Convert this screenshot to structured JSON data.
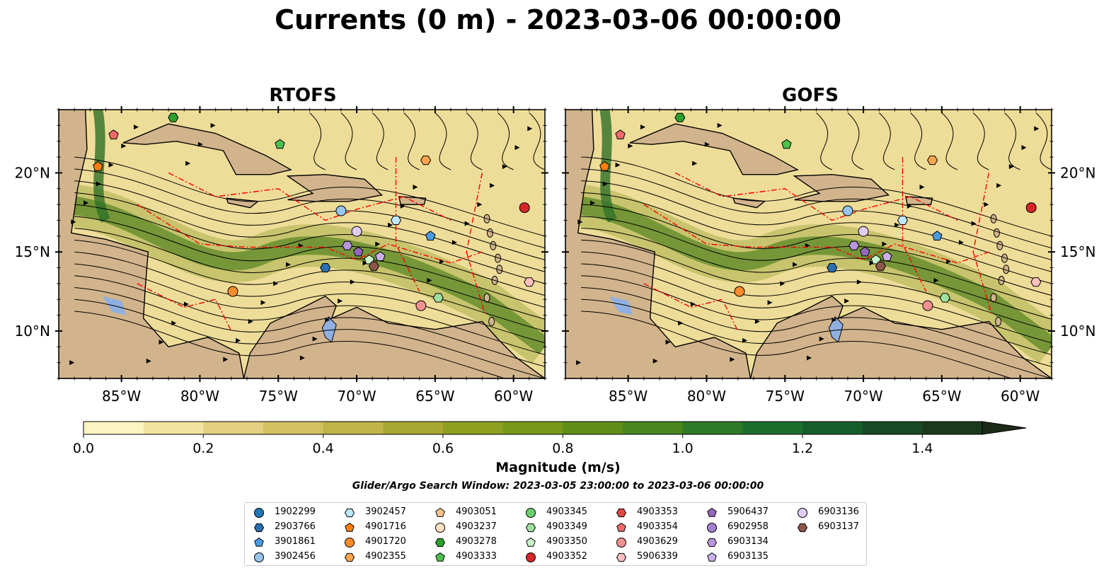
{
  "title": "Currents (0 m) - 2023-03-06 00:00:00",
  "panels": [
    {
      "title": "RTOFS"
    },
    {
      "title": "GOFS"
    }
  ],
  "map": {
    "lon_range": [
      -89,
      -58
    ],
    "lat_range": [
      7,
      24
    ],
    "x_ticks": [
      "85°W",
      "80°W",
      "75°W",
      "70°W",
      "65°W",
      "60°W"
    ],
    "y_ticks": [
      "20°N",
      "15°N",
      "10°N"
    ],
    "colors": {
      "land": "#d2b48c",
      "ocean_low": "#fdf5c1",
      "streamline": "#000000",
      "eez": "#ff0000",
      "lake": "#8fb0e0"
    }
  },
  "colorbar": {
    "label": "Magnitude (m/s)",
    "ticks": [
      "0.0",
      "0.2",
      "0.4",
      "0.6",
      "0.8",
      "1.0",
      "1.2",
      "1.4"
    ],
    "range": [
      0,
      1.5
    ],
    "extend": "max",
    "colors": [
      "#fdf5c1",
      "#f2e4a0",
      "#e3d080",
      "#d3c062",
      "#c0b448",
      "#a8a832",
      "#8fa020",
      "#779818",
      "#5f8e18",
      "#48861e",
      "#2e7a26",
      "#1d6e2e",
      "#155e2a",
      "#174a24",
      "#1b3a1c",
      "#1c2a18"
    ]
  },
  "search_window": "Glider/Argo Search Window: 2023-03-05 23:00:00 to 2023-03-06 00:00:00",
  "floats": [
    {
      "id": "1902299",
      "marker": "circle",
      "color": "#1f77b4"
    },
    {
      "id": "2903766",
      "marker": "hexagon",
      "color": "#2c6fb0"
    },
    {
      "id": "3901861",
      "marker": "pentagon",
      "color": "#4c9be0"
    },
    {
      "id": "3902456",
      "marker": "circle",
      "color": "#98c4ee"
    },
    {
      "id": "3902457",
      "marker": "hexagon",
      "color": "#bfe6ff"
    },
    {
      "id": "4901716",
      "marker": "pentagon",
      "color": "#ff7f0e"
    },
    {
      "id": "4901720",
      "marker": "circle",
      "color": "#ff8c2a"
    },
    {
      "id": "4902355",
      "marker": "hexagon",
      "color": "#ffa54f"
    },
    {
      "id": "4903051",
      "marker": "pentagon",
      "color": "#ffc48c"
    },
    {
      "id": "4903237",
      "marker": "circle",
      "color": "#ffe0c0"
    },
    {
      "id": "4903278",
      "marker": "hexagon",
      "color": "#2ca02c"
    },
    {
      "id": "4903333",
      "marker": "pentagon",
      "color": "#4cbf4c"
    },
    {
      "id": "4903345",
      "marker": "circle",
      "color": "#6ccf6c"
    },
    {
      "id": "4903349",
      "marker": "hexagon",
      "color": "#9fe09f"
    },
    {
      "id": "4903350",
      "marker": "pentagon",
      "color": "#ccf5cc"
    },
    {
      "id": "4903352",
      "marker": "circle",
      "color": "#d62728"
    },
    {
      "id": "4903353",
      "marker": "hexagon",
      "color": "#e04848"
    },
    {
      "id": "4903354",
      "marker": "pentagon",
      "color": "#ef6a6a"
    },
    {
      "id": "4903629",
      "marker": "circle",
      "color": "#f39090"
    },
    {
      "id": "5906339",
      "marker": "hexagon",
      "color": "#fbc0c0"
    },
    {
      "id": "5906437",
      "marker": "pentagon",
      "color": "#9467bd"
    },
    {
      "id": "6902958",
      "marker": "circle",
      "color": "#a67fd0"
    },
    {
      "id": "6903134",
      "marker": "hexagon",
      "color": "#b897de"
    },
    {
      "id": "6903135",
      "marker": "pentagon",
      "color": "#ccb0ea"
    },
    {
      "id": "6903136",
      "marker": "circle",
      "color": "#e0ccf5"
    },
    {
      "id": "6903137",
      "marker": "hexagon",
      "color": "#8c564b"
    }
  ],
  "float_positions": [
    {
      "marker": "pentagon",
      "color": "#ef6a6a",
      "lon": -85.5,
      "lat": 22.4
    },
    {
      "marker": "pentagon",
      "color": "#ff7f0e",
      "lon": -86.5,
      "lat": 20.4
    },
    {
      "marker": "hexagon",
      "color": "#2ca02c",
      "lon": -81.7,
      "lat": 23.5
    },
    {
      "marker": "pentagon",
      "color": "#4cbf4c",
      "lon": -74.9,
      "lat": 21.8
    },
    {
      "marker": "hexagon",
      "color": "#ffa54f",
      "lon": -65.6,
      "lat": 20.8
    },
    {
      "marker": "circle",
      "color": "#d62728",
      "lon": -59.3,
      "lat": 17.8
    },
    {
      "marker": "circle",
      "color": "#98c4ee",
      "lon": -71.0,
      "lat": 17.6
    },
    {
      "marker": "hexagon",
      "color": "#bfe6ff",
      "lon": -67.5,
      "lat": 17.0
    },
    {
      "marker": "pentagon",
      "color": "#4c9be0",
      "lon": -65.3,
      "lat": 16.0
    },
    {
      "marker": "circle",
      "color": "#e0ccf5",
      "lon": -70.0,
      "lat": 16.3
    },
    {
      "marker": "hexagon",
      "color": "#b897de",
      "lon": -70.6,
      "lat": 15.4
    },
    {
      "marker": "pentagon",
      "color": "#9467bd",
      "lon": -69.9,
      "lat": 15.0
    },
    {
      "marker": "pentagon",
      "color": "#ccf5cc",
      "lon": -69.2,
      "lat": 14.5
    },
    {
      "marker": "pentagon",
      "color": "#ccb0ea",
      "lon": -68.5,
      "lat": 14.7
    },
    {
      "marker": "hexagon",
      "color": "#8c564b",
      "lon": -68.9,
      "lat": 14.1
    },
    {
      "marker": "hexagon",
      "color": "#2c6fb0",
      "lon": -72.0,
      "lat": 14.0
    },
    {
      "marker": "circle",
      "color": "#ff8c2a",
      "lon": -77.9,
      "lat": 12.5
    },
    {
      "marker": "circle",
      "color": "#f39090",
      "lon": -65.9,
      "lat": 11.6
    },
    {
      "marker": "hexagon",
      "color": "#9fe09f",
      "lon": -64.8,
      "lat": 12.1
    },
    {
      "marker": "hexagon",
      "color": "#fbc0c0",
      "lon": -59.0,
      "lat": 13.1
    }
  ]
}
